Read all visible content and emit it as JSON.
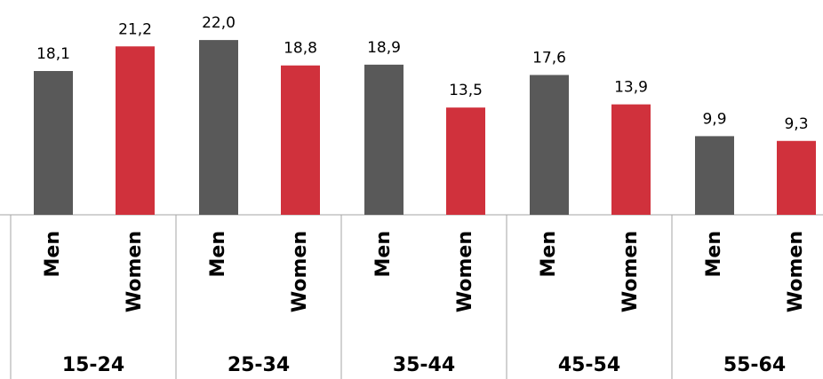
{
  "chart_data": {
    "type": "bar",
    "categories": [
      "15-24",
      "25-34",
      "35-44",
      "45-54",
      "55-64"
    ],
    "series": [
      {
        "name": "Men",
        "color": "#595959",
        "values": [
          18.1,
          22.0,
          18.9,
          17.6,
          9.9
        ],
        "value_labels": [
          "18,1",
          "22,0",
          "18,9",
          "17,6",
          "9,9"
        ]
      },
      {
        "name": "Women",
        "color": "#d0313c",
        "values": [
          21.2,
          18.8,
          13.5,
          13.9,
          9.3
        ],
        "value_labels": [
          "21,2",
          "18,8",
          "13,5",
          "13,9",
          "9,3"
        ]
      }
    ]
  }
}
